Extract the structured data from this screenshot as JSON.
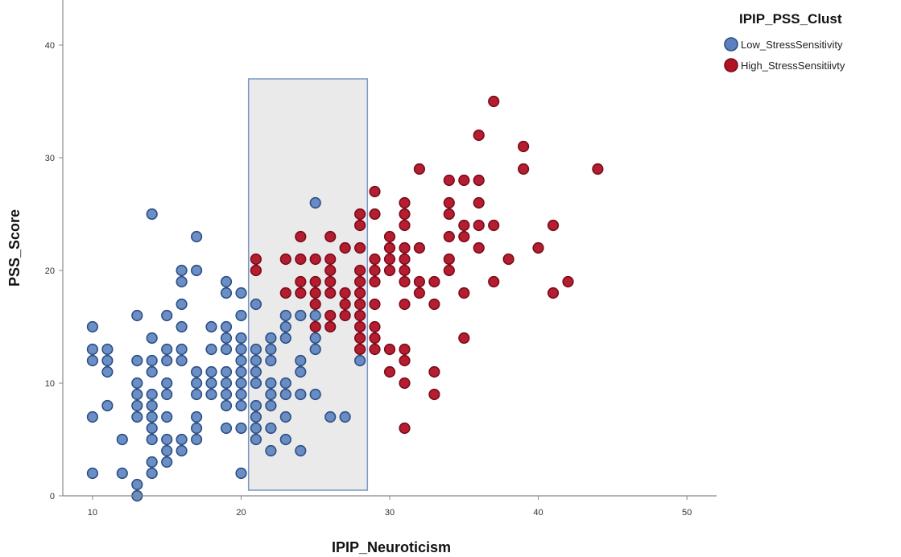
{
  "chart_data": {
    "type": "scatter",
    "xlabel": "IPIP_Neuroticism",
    "ylabel": "PSS_Score",
    "xlim": [
      8,
      52
    ],
    "ylim": [
      0,
      44
    ],
    "x_ticks": [
      10,
      20,
      30,
      40,
      50
    ],
    "y_ticks": [
      0,
      10,
      20,
      30,
      40
    ],
    "grid": false,
    "legend": {
      "title": "IPIP_PSS_Clust",
      "position": "top-right"
    },
    "highlight_region": {
      "x_range": [
        20.5,
        28.5
      ],
      "y_range": [
        0.5,
        37
      ],
      "fill": "#d9d9d9",
      "stroke": "#7a96c8"
    },
    "series": [
      {
        "name": "Low_StressSensitivity",
        "color": "#5b82be",
        "stroke": "#2b4f85",
        "points": [
          [
            10,
            15
          ],
          [
            10,
            13
          ],
          [
            10,
            12
          ],
          [
            10,
            7
          ],
          [
            10,
            2
          ],
          [
            11,
            13
          ],
          [
            11,
            12
          ],
          [
            11,
            8
          ],
          [
            11,
            11
          ],
          [
            12,
            5
          ],
          [
            12,
            2
          ],
          [
            13,
            16
          ],
          [
            13,
            12
          ],
          [
            13,
            10
          ],
          [
            13,
            9
          ],
          [
            13,
            8
          ],
          [
            13,
            7
          ],
          [
            13,
            1
          ],
          [
            13,
            0
          ],
          [
            14,
            25
          ],
          [
            14,
            14
          ],
          [
            14,
            12
          ],
          [
            14,
            11
          ],
          [
            14,
            9
          ],
          [
            14,
            8
          ],
          [
            14,
            7
          ],
          [
            14,
            6
          ],
          [
            14,
            5
          ],
          [
            14,
            3
          ],
          [
            14,
            2
          ],
          [
            15,
            16
          ],
          [
            15,
            13
          ],
          [
            15,
            12
          ],
          [
            15,
            10
          ],
          [
            15,
            9
          ],
          [
            15,
            7
          ],
          [
            15,
            5
          ],
          [
            15,
            4
          ],
          [
            15,
            3
          ],
          [
            16,
            20
          ],
          [
            16,
            19
          ],
          [
            16,
            17
          ],
          [
            16,
            15
          ],
          [
            16,
            13
          ],
          [
            16,
            12
          ],
          [
            16,
            5
          ],
          [
            16,
            4
          ],
          [
            17,
            23
          ],
          [
            17,
            20
          ],
          [
            17,
            11
          ],
          [
            17,
            10
          ],
          [
            17,
            9
          ],
          [
            17,
            7
          ],
          [
            17,
            6
          ],
          [
            17,
            5
          ],
          [
            18,
            15
          ],
          [
            18,
            13
          ],
          [
            18,
            11
          ],
          [
            18,
            10
          ],
          [
            18,
            9
          ],
          [
            19,
            19
          ],
          [
            19,
            18
          ],
          [
            19,
            15
          ],
          [
            19,
            14
          ],
          [
            19,
            13
          ],
          [
            19,
            11
          ],
          [
            19,
            10
          ],
          [
            19,
            9
          ],
          [
            19,
            8
          ],
          [
            19,
            6
          ],
          [
            20,
            18
          ],
          [
            20,
            16
          ],
          [
            20,
            14
          ],
          [
            20,
            13
          ],
          [
            20,
            12
          ],
          [
            20,
            11
          ],
          [
            20,
            10
          ],
          [
            20,
            9
          ],
          [
            20,
            8
          ],
          [
            20,
            6
          ],
          [
            20,
            2
          ],
          [
            21,
            17
          ],
          [
            21,
            13
          ],
          [
            21,
            12
          ],
          [
            21,
            11
          ],
          [
            21,
            10
          ],
          [
            21,
            8
          ],
          [
            21,
            7
          ],
          [
            21,
            6
          ],
          [
            21,
            5
          ],
          [
            22,
            14
          ],
          [
            22,
            13
          ],
          [
            22,
            12
          ],
          [
            22,
            10
          ],
          [
            22,
            9
          ],
          [
            22,
            8
          ],
          [
            22,
            6
          ],
          [
            22,
            4
          ],
          [
            23,
            16
          ],
          [
            23,
            15
          ],
          [
            23,
            14
          ],
          [
            23,
            10
          ],
          [
            23,
            9
          ],
          [
            23,
            7
          ],
          [
            23,
            5
          ],
          [
            24,
            16
          ],
          [
            24,
            12
          ],
          [
            24,
            11
          ],
          [
            24,
            9
          ],
          [
            24,
            4
          ],
          [
            25,
            26
          ],
          [
            25,
            16
          ],
          [
            25,
            14
          ],
          [
            25,
            13
          ],
          [
            25,
            9
          ],
          [
            26,
            7
          ],
          [
            27,
            7
          ],
          [
            28,
            12
          ]
        ]
      },
      {
        "name": "High_StressSensitiivty",
        "color": "#b11226",
        "stroke": "#7a0c1a",
        "points": [
          [
            21,
            21
          ],
          [
            21,
            20
          ],
          [
            23,
            21
          ],
          [
            23,
            18
          ],
          [
            24,
            23
          ],
          [
            24,
            21
          ],
          [
            24,
            19
          ],
          [
            24,
            18
          ],
          [
            25,
            21
          ],
          [
            25,
            19
          ],
          [
            25,
            18
          ],
          [
            25,
            17
          ],
          [
            25,
            15
          ],
          [
            26,
            23
          ],
          [
            26,
            21
          ],
          [
            26,
            20
          ],
          [
            26,
            19
          ],
          [
            26,
            18
          ],
          [
            26,
            16
          ],
          [
            26,
            15
          ],
          [
            27,
            22
          ],
          [
            27,
            18
          ],
          [
            27,
            17
          ],
          [
            27,
            16
          ],
          [
            28,
            25
          ],
          [
            28,
            24
          ],
          [
            28,
            22
          ],
          [
            28,
            20
          ],
          [
            28,
            19
          ],
          [
            28,
            18
          ],
          [
            28,
            17
          ],
          [
            28,
            16
          ],
          [
            28,
            15
          ],
          [
            28,
            14
          ],
          [
            28,
            13
          ],
          [
            29,
            27
          ],
          [
            29,
            25
          ],
          [
            29,
            21
          ],
          [
            29,
            20
          ],
          [
            29,
            19
          ],
          [
            29,
            17
          ],
          [
            29,
            15
          ],
          [
            29,
            14
          ],
          [
            29,
            13
          ],
          [
            30,
            23
          ],
          [
            30,
            22
          ],
          [
            30,
            21
          ],
          [
            30,
            20
          ],
          [
            30,
            13
          ],
          [
            30,
            11
          ],
          [
            31,
            26
          ],
          [
            31,
            25
          ],
          [
            31,
            24
          ],
          [
            31,
            22
          ],
          [
            31,
            21
          ],
          [
            31,
            20
          ],
          [
            31,
            19
          ],
          [
            31,
            17
          ],
          [
            31,
            13
          ],
          [
            31,
            12
          ],
          [
            31,
            10
          ],
          [
            31,
            6
          ],
          [
            32,
            29
          ],
          [
            32,
            22
          ],
          [
            32,
            19
          ],
          [
            32,
            18
          ],
          [
            33,
            19
          ],
          [
            33,
            17
          ],
          [
            33,
            11
          ],
          [
            33,
            9
          ],
          [
            34,
            28
          ],
          [
            34,
            26
          ],
          [
            34,
            25
          ],
          [
            34,
            23
          ],
          [
            34,
            21
          ],
          [
            34,
            20
          ],
          [
            35,
            28
          ],
          [
            35,
            24
          ],
          [
            35,
            23
          ],
          [
            35,
            18
          ],
          [
            35,
            14
          ],
          [
            36,
            32
          ],
          [
            36,
            28
          ],
          [
            36,
            26
          ],
          [
            36,
            24
          ],
          [
            36,
            22
          ],
          [
            37,
            35
          ],
          [
            37,
            24
          ],
          [
            37,
            19
          ],
          [
            38,
            21
          ],
          [
            39,
            31
          ],
          [
            39,
            29
          ],
          [
            40,
            22
          ],
          [
            41,
            24
          ],
          [
            41,
            18
          ],
          [
            42,
            19
          ],
          [
            44,
            29
          ]
        ]
      }
    ]
  }
}
